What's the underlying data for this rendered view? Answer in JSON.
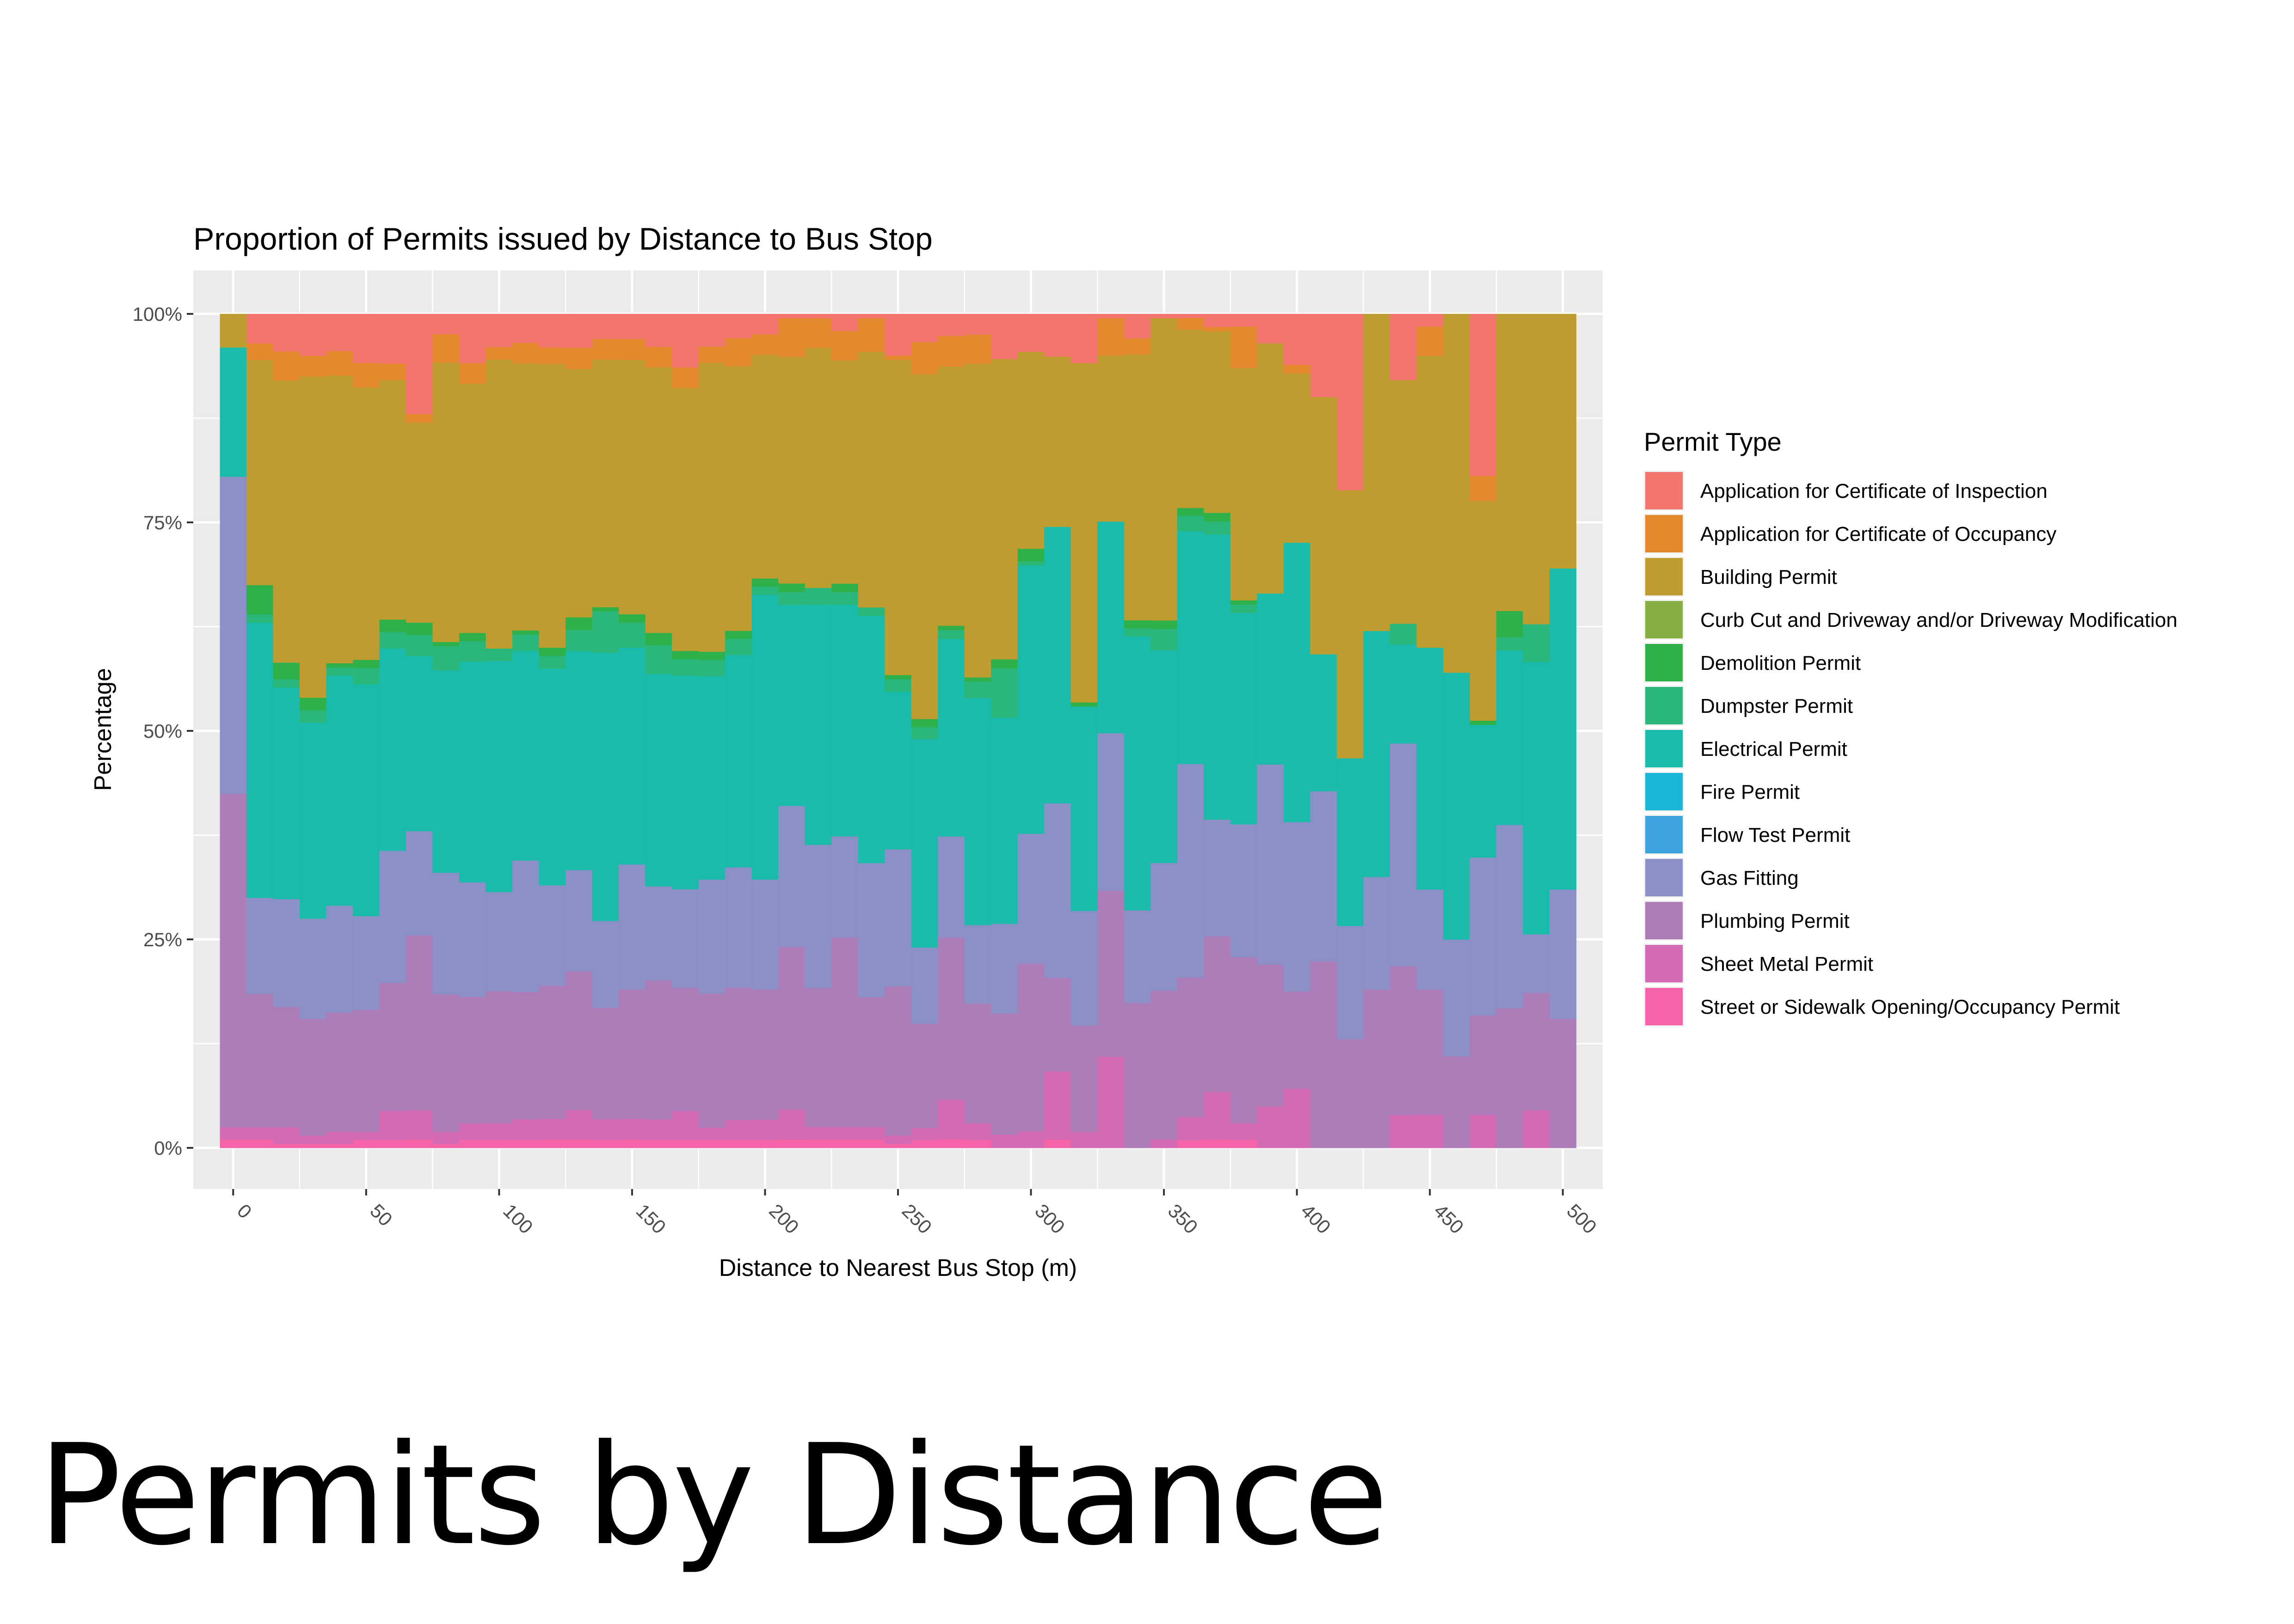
{
  "slide": {
    "title": "Permits by Distance"
  },
  "chart_data": {
    "type": "bar",
    "stacking": "percent",
    "title": "Proportion of Permits issued by Distance to Bus Stop",
    "xlabel": "Distance to Nearest Bus Stop (m)",
    "ylabel": "Percentage",
    "xlim": [
      -15,
      515
    ],
    "ylim": [
      0,
      1
    ],
    "bin_width": 10,
    "x_ticks": [
      0,
      50,
      100,
      150,
      200,
      250,
      300,
      350,
      400,
      450,
      500
    ],
    "y_ticks": [
      "0%",
      "25%",
      "50%",
      "75%",
      "100%"
    ],
    "y_tick_values": [
      0,
      0.25,
      0.5,
      0.75,
      1
    ],
    "grid": true,
    "legend_title": "Permit Type",
    "legend_position": "right",
    "x": [
      0,
      10,
      20,
      30,
      40,
      50,
      60,
      70,
      80,
      90,
      100,
      110,
      120,
      130,
      140,
      150,
      160,
      170,
      180,
      190,
      200,
      210,
      220,
      230,
      240,
      250,
      260,
      270,
      280,
      290,
      300,
      310,
      320,
      330,
      340,
      350,
      360,
      370,
      380,
      390,
      400,
      410,
      420,
      430,
      440,
      450,
      460,
      470,
      480,
      490,
      500
    ],
    "series": [
      {
        "name": "Street or Sidewalk Opening/Occupancy Permit",
        "color": "#F564A9",
        "values": [
          0.01,
          0.01,
          0.005,
          0.005,
          0.005,
          0.01,
          0.01,
          0.01,
          0.005,
          0.01,
          0.01,
          0.01,
          0.01,
          0.01,
          0.01,
          0.01,
          0.01,
          0.01,
          0.01,
          0.01,
          0.01,
          0.01,
          0.01,
          0.01,
          0.01,
          0.005,
          0.01,
          0.01,
          0.01,
          0,
          0,
          0.01,
          0,
          0,
          0,
          0,
          0.01,
          0.01,
          0.01,
          0,
          0,
          0,
          0,
          0,
          0,
          0,
          0,
          0,
          0,
          0,
          0
        ]
      },
      {
        "name": "Sheet Metal Permit",
        "color": "#D26BB3",
        "values": [
          0.015,
          0.015,
          0.02,
          0.01,
          0.015,
          0.01,
          0.035,
          0.035,
          0.015,
          0.02,
          0.02,
          0.025,
          0.025,
          0.035,
          0.025,
          0.025,
          0.025,
          0.035,
          0.015,
          0.025,
          0.025,
          0.035,
          0.015,
          0.015,
          0.015,
          0.01,
          0.015,
          0.045,
          0.02,
          0.015,
          0.02,
          0.08,
          0.02,
          0.11,
          0,
          0.01,
          0.03,
          0.055,
          0.02,
          0.05,
          0.07,
          0,
          0,
          0,
          0.04,
          0.04,
          0,
          0.04,
          0,
          0.045,
          0
        ]
      },
      {
        "name": "Plumbing Permit",
        "color": "#AC7DB8",
        "values": [
          0.4,
          0.16,
          0.145,
          0.14,
          0.145,
          0.15,
          0.155,
          0.21,
          0.17,
          0.155,
          0.16,
          0.155,
          0.16,
          0.165,
          0.135,
          0.155,
          0.17,
          0.15,
          0.165,
          0.165,
          0.16,
          0.19,
          0.165,
          0.225,
          0.155,
          0.18,
          0.13,
          0.185,
          0.145,
          0.135,
          0.2,
          0.11,
          0.13,
          0.2,
          0.18,
          0.175,
          0.18,
          0.18,
          0.2,
          0.17,
          0.115,
          0.225,
          0.13,
          0.19,
          0.18,
          0.15,
          0.11,
          0.12,
          0.16,
          0.14,
          0.155
        ]
      },
      {
        "name": "Gas Fitting",
        "color": "#8B90C6",
        "values": [
          0.38,
          0.115,
          0.13,
          0.12,
          0.13,
          0.115,
          0.16,
          0.125,
          0.15,
          0.14,
          0.12,
          0.16,
          0.12,
          0.12,
          0.105,
          0.15,
          0.115,
          0.12,
          0.14,
          0.15,
          0.135,
          0.165,
          0.17,
          0.12,
          0.16,
          0.165,
          0.095,
          0.115,
          0.095,
          0.1,
          0.155,
          0.205,
          0.14,
          0.19,
          0.115,
          0.15,
          0.275,
          0.135,
          0.16,
          0.24,
          0.2,
          0.205,
          0.135,
          0.135,
          0.27,
          0.12,
          0.14,
          0.19,
          0.21,
          0.07,
          0.155
        ]
      },
      {
        "name": "Flow Test Permit",
        "color": "#3CA3DD",
        "values": [
          0,
          0,
          0,
          0,
          0,
          0,
          0,
          0,
          0,
          0,
          0,
          0,
          0,
          0,
          0,
          0,
          0,
          0,
          0,
          0,
          0,
          0,
          0,
          0,
          0,
          0,
          0,
          0,
          0,
          0,
          0,
          0,
          0,
          0,
          0,
          0,
          0,
          0,
          0,
          0,
          0,
          0,
          0,
          0,
          0,
          0,
          0,
          0,
          0,
          0,
          0
        ]
      },
      {
        "name": "Fire Permit",
        "color": "#1BB6D8",
        "values": [
          0,
          0,
          0,
          0,
          0,
          0,
          0,
          0,
          0,
          0,
          0,
          0,
          0,
          0,
          0,
          0,
          0,
          0,
          0,
          0,
          0,
          0,
          0,
          0,
          0,
          0,
          0,
          0,
          0,
          0,
          0,
          0,
          0,
          0,
          0,
          0,
          0,
          0,
          0,
          0,
          0,
          0,
          0,
          0,
          0,
          0,
          0,
          0,
          0,
          0,
          0
        ]
      },
      {
        "name": "Electrical Permit",
        "color": "#1ABBAA",
        "values": [
          0.155,
          0.33,
          0.255,
          0.235,
          0.28,
          0.285,
          0.245,
          0.21,
          0.25,
          0.27,
          0.28,
          0.255,
          0.26,
          0.26,
          0.325,
          0.26,
          0.26,
          0.26,
          0.25,
          0.265,
          0.35,
          0.235,
          0.285,
          0.275,
          0.295,
          0.19,
          0.26,
          0.225,
          0.275,
          0.23,
          0.32,
          0.325,
          0.25,
          0.255,
          0.34,
          0.25,
          0.3,
          0.33,
          0.255,
          0.205,
          0.33,
          0.165,
          0.2,
          0.295,
          0.12,
          0.29,
          0.32,
          0.16,
          0.2,
          0.325,
          0.385
        ]
      },
      {
        "name": "Dumpster Permit",
        "color": "#2BB67A",
        "values": [
          0,
          0.01,
          0.01,
          0.015,
          0.01,
          0.02,
          0.02,
          0.025,
          0.03,
          0.025,
          0.015,
          0.02,
          0.015,
          0.025,
          0.05,
          0.03,
          0.035,
          0.02,
          0.02,
          0.02,
          0.01,
          0.015,
          0.02,
          0.015,
          0.01,
          0.015,
          0.015,
          0.01,
          0.02,
          0.055,
          0.005,
          0,
          0,
          0,
          0.01,
          0.025,
          0.02,
          0.015,
          0.01,
          0,
          0,
          0,
          0,
          0,
          0.025,
          0,
          0,
          0,
          0.015,
          0.045,
          0
        ]
      },
      {
        "name": "Demolition Permit",
        "color": "#2EB04B",
        "values": [
          0,
          0.035,
          0.02,
          0.015,
          0.005,
          0.01,
          0.015,
          0.015,
          0.005,
          0.01,
          0,
          0.005,
          0.01,
          0.015,
          0.005,
          0.01,
          0.015,
          0.01,
          0.01,
          0.01,
          0.01,
          0.01,
          0,
          0.01,
          0,
          0.005,
          0.01,
          0.005,
          0.005,
          0.01,
          0.015,
          0,
          0.005,
          0,
          0.01,
          0.01,
          0.01,
          0.01,
          0.005,
          0,
          0,
          0,
          0,
          0,
          0,
          0,
          0,
          0.005,
          0.03,
          0,
          0
        ]
      },
      {
        "name": "Curb Cut and Driveway and/or Driveway Modification",
        "color": "#86AE43",
        "values": [
          0,
          0,
          0,
          0,
          0,
          0,
          0,
          0,
          0,
          0,
          0,
          0,
          0,
          0,
          0,
          0,
          0,
          0,
          0,
          0,
          0,
          0,
          0,
          0,
          0,
          0,
          0,
          0,
          0,
          0,
          0,
          0,
          0,
          0,
          0,
          0,
          0,
          0,
          0,
          0,
          0,
          0,
          0,
          0,
          0,
          0,
          0,
          0,
          0,
          0,
          0
        ]
      },
      {
        "name": "Building Permit",
        "color": "#BF9C30",
        "values": [
          0.04,
          0.27,
          0.34,
          0.385,
          0.35,
          0.335,
          0.29,
          0.24,
          0.345,
          0.305,
          0.35,
          0.325,
          0.34,
          0.295,
          0.3,
          0.305,
          0.325,
          0.32,
          0.355,
          0.33,
          0.275,
          0.265,
          0.285,
          0.265,
          0.305,
          0.38,
          0.43,
          0.295,
          0.38,
          0.335,
          0.235,
          0.2,
          0.415,
          0.2,
          0.33,
          0.355,
          0.23,
          0.21,
          0.28,
          0.3,
          0.2,
          0.31,
          0.32,
          0.38,
          0.295,
          0.35,
          0.43,
          0.265,
          0.34,
          0.37,
          0.305
        ]
      },
      {
        "name": "Application for Certificate of Occupancy",
        "color": "#E4882D",
        "values": [
          0,
          0.02,
          0.035,
          0.025,
          0.03,
          0.03,
          0.02,
          0.01,
          0.035,
          0.025,
          0.015,
          0.025,
          0.02,
          0.025,
          0.025,
          0.025,
          0.025,
          0.025,
          0.02,
          0.035,
          0.025,
          0.045,
          0.035,
          0.035,
          0.04,
          0.005,
          0.04,
          0.035,
          0.035,
          0,
          0,
          0,
          0,
          0.045,
          0.02,
          0,
          0.015,
          0.005,
          0.05,
          0,
          0.01,
          0,
          0,
          0,
          0,
          0.035,
          0,
          0.03,
          0,
          0,
          0
        ]
      },
      {
        "name": "Application for Certificate of Inspection",
        "color": "#F2766E",
        "values": [
          0,
          0.035,
          0.045,
          0.05,
          0.045,
          0.06,
          0.06,
          0.12,
          0.025,
          0.06,
          0.04,
          0.035,
          0.04,
          0.04,
          0.03,
          0.03,
          0.04,
          0.065,
          0.04,
          0.03,
          0.025,
          0.005,
          0.005,
          0.02,
          0.005,
          0.05,
          0.035,
          0.025,
          0.025,
          0.05,
          0.045,
          0.05,
          0.06,
          0.005,
          0.03,
          0.005,
          0.005,
          0.015,
          0.015,
          0.035,
          0.06,
          0.1,
          0.21,
          0,
          0.08,
          0.015,
          0,
          0.195,
          0,
          0,
          0
        ]
      }
    ]
  }
}
